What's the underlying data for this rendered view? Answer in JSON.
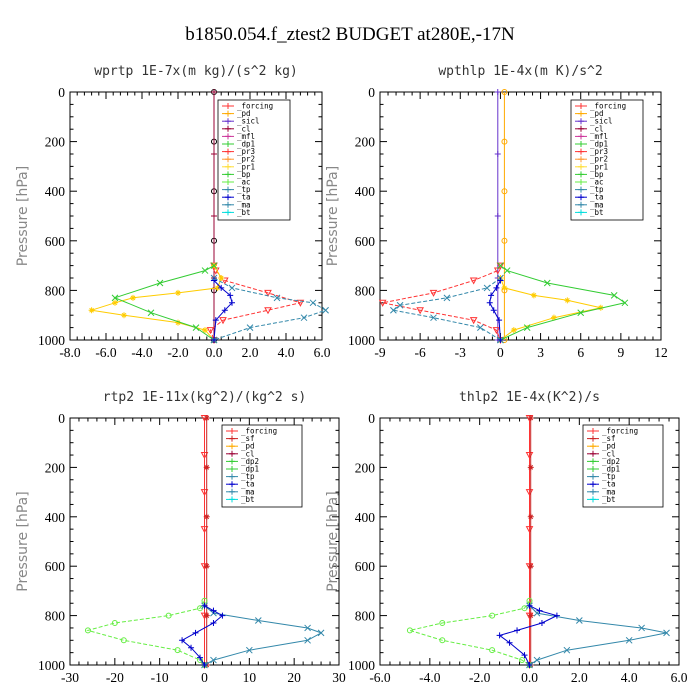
{
  "figure_title": "b1850.054.f_ztest2  BUDGET at280E,-17N",
  "chart_data": [
    {
      "type": "line",
      "title": "wprtp  1E-7x(m kg)/(s^2 kg)",
      "ylabel": "Pressure [hPa]",
      "xlim": [
        -8,
        6
      ],
      "ylim": [
        1000,
        0
      ],
      "xticks": [
        -8,
        -6,
        -4,
        -2,
        0,
        2,
        4,
        6
      ],
      "xtick_labels": [
        "-8.0",
        "-6.0",
        "-4.0",
        "-2.0",
        "0.0",
        "2.0",
        "4.0",
        "6.0"
      ],
      "yticks": [
        0,
        200,
        400,
        600,
        800,
        1000
      ],
      "ytick_labels": [
        "0",
        "200",
        "400",
        "600",
        "800",
        "1000"
      ],
      "legend": [
        "_forcing",
        "_pd",
        "_sicl",
        "_cl",
        "_mfl",
        "_dp1",
        "_pr3",
        "_pr2",
        "_pr1",
        "_bp",
        "_ac",
        "_tp",
        "_ta",
        "_ma",
        "_bt"
      ],
      "series": [
        {
          "color": "#000000",
          "marker": "circle",
          "x": [
            0,
            0,
            0,
            0,
            0,
            0
          ],
          "y": [
            0,
            200,
            400,
            600,
            800,
            1000
          ]
        },
        {
          "color": "#990033",
          "marker": "plus",
          "x": [
            0,
            0,
            0,
            0,
            0
          ],
          "y": [
            0,
            250,
            500,
            750,
            1000
          ]
        },
        {
          "color": "#ff3333",
          "marker": "triangle-down",
          "x": [
            0,
            0.1,
            0.6,
            3.0,
            4.8,
            3.0,
            0.5,
            -0.2,
            0
          ],
          "y": [
            700,
            720,
            760,
            810,
            850,
            880,
            920,
            960,
            1000
          ]
        },
        {
          "color": "#ffcc00",
          "marker": "star",
          "x": [
            0,
            0.4,
            0.2,
            -2.0,
            -4.5,
            -5.5,
            -6.8,
            -5.0,
            -2.0,
            -0.5,
            0
          ],
          "y": [
            700,
            750,
            790,
            810,
            830,
            850,
            880,
            900,
            930,
            960,
            1000
          ]
        },
        {
          "color": "#33cc33",
          "marker": "x",
          "x": [
            0,
            -0.5,
            -3.0,
            -5.5,
            -3.5,
            -1.0,
            0
          ],
          "y": [
            700,
            720,
            770,
            830,
            890,
            950,
            1000
          ]
        },
        {
          "color": "#3388aa",
          "marker": "x",
          "x": [
            0,
            1.0,
            3.5,
            5.5,
            6.2,
            5.0,
            2.0,
            0
          ],
          "y": [
            750,
            790,
            830,
            850,
            880,
            910,
            950,
            1000
          ]
        },
        {
          "color": "#0000cc",
          "marker": "plus",
          "x": [
            0,
            0.4,
            0.9,
            1.0,
            0.6,
            0.1,
            0
          ],
          "y": [
            760,
            790,
            820,
            850,
            880,
            920,
            1000
          ]
        }
      ]
    },
    {
      "type": "line",
      "title": "wpthlp  1E-4x(m K)/s^2",
      "ylabel": "Pressure [hPa]",
      "xlim": [
        -9,
        12
      ],
      "ylim": [
        1000,
        0
      ],
      "xticks": [
        -9,
        -6,
        -3,
        0,
        3,
        6,
        9,
        12
      ],
      "xtick_labels": [
        "-9",
        "-6",
        "-3",
        "0",
        "3",
        "6",
        "9",
        "12"
      ],
      "yticks": [
        0,
        200,
        400,
        600,
        800,
        1000
      ],
      "ytick_labels": [
        "0",
        "200",
        "400",
        "600",
        "800",
        "1000"
      ],
      "legend": [
        "_forcing",
        "_pd",
        "_sicl",
        "_cl",
        "_mfl",
        "_dp1",
        "_pr3",
        "_pr2",
        "_pr1",
        "_bp",
        "_ac",
        "_tp",
        "_ta",
        "_ma",
        "_bt"
      ],
      "series": [
        {
          "color": "#ffaa00",
          "marker": "circle",
          "x": [
            0.3,
            0.3,
            0.3,
            0.3,
            0.3,
            0.3
          ],
          "y": [
            0,
            200,
            400,
            600,
            800,
            1000
          ]
        },
        {
          "color": "#6633cc",
          "marker": "plus",
          "x": [
            -0.2,
            -0.2,
            -0.2,
            -0.2,
            -0.2
          ],
          "y": [
            0,
            250,
            500,
            750,
            1000
          ]
        },
        {
          "color": "#ff3333",
          "marker": "triangle-down",
          "x": [
            0,
            -0.2,
            -2.0,
            -5.0,
            -8.8,
            -6.0,
            -2.0,
            -0.3,
            0
          ],
          "y": [
            700,
            720,
            760,
            810,
            850,
            880,
            920,
            960,
            1000
          ]
        },
        {
          "color": "#ffcc00",
          "marker": "star",
          "x": [
            0,
            0.3,
            2.5,
            5.0,
            7.5,
            4.0,
            1.0,
            0
          ],
          "y": [
            750,
            790,
            820,
            840,
            870,
            910,
            960,
            1000
          ]
        },
        {
          "color": "#33cc33",
          "marker": "x",
          "x": [
            0,
            0.5,
            3.5,
            8.5,
            9.3,
            6.0,
            2.0,
            0
          ],
          "y": [
            700,
            720,
            770,
            820,
            850,
            890,
            950,
            1000
          ]
        },
        {
          "color": "#3388aa",
          "marker": "x",
          "x": [
            0,
            -1.0,
            -4.0,
            -7.5,
            -8.0,
            -5.0,
            -1.5,
            0
          ],
          "y": [
            750,
            790,
            830,
            860,
            880,
            910,
            950,
            1000
          ]
        },
        {
          "color": "#0000cc",
          "marker": "plus",
          "x": [
            0,
            -0.3,
            -0.7,
            -0.8,
            -0.5,
            -0.1,
            0
          ],
          "y": [
            760,
            790,
            820,
            850,
            880,
            920,
            1000
          ]
        }
      ]
    },
    {
      "type": "line",
      "title": "rtp2  1E-11x(kg^2)/(kg^2 s)",
      "ylabel": "Pressure [hPa]",
      "xlim": [
        -30,
        30
      ],
      "ylim": [
        1000,
        0
      ],
      "xticks": [
        -30,
        -20,
        -10,
        0,
        10,
        20,
        30
      ],
      "xtick_labels": [
        "-30",
        "-20",
        "-10",
        "0",
        "10",
        "20",
        "30"
      ],
      "yticks": [
        0,
        200,
        400,
        600,
        800,
        1000
      ],
      "ytick_labels": [
        "0",
        "200",
        "400",
        "600",
        "800",
        "1000"
      ],
      "legend": [
        "_forcing",
        "_sf",
        "_pd",
        "_cl",
        "_dp2",
        "_dp1",
        "_tp",
        "_ta",
        "_ma",
        "_bt"
      ],
      "series": [
        {
          "color": "#ff3333",
          "marker": "triangle-down",
          "x": [
            0,
            0,
            0,
            0,
            0,
            0,
            0
          ],
          "y": [
            0,
            150,
            300,
            450,
            600,
            800,
            1000
          ]
        },
        {
          "color": "#cc2222",
          "marker": "star",
          "x": [
            0.5,
            0.5,
            0.5,
            0.5,
            0.5,
            0.5
          ],
          "y": [
            0,
            200,
            400,
            600,
            800,
            1000
          ]
        },
        {
          "color": "#66ee44",
          "marker": "circle",
          "x": [
            0,
            -1.0,
            -8.0,
            -20.0,
            -26.0,
            -18.0,
            -6.0,
            -1.0,
            0
          ],
          "y": [
            740,
            770,
            800,
            830,
            860,
            900,
            940,
            980,
            1000
          ]
        },
        {
          "color": "#3388aa",
          "marker": "x",
          "x": [
            0,
            2.0,
            12.0,
            23.0,
            26.0,
            23.0,
            10.0,
            2.0,
            0
          ],
          "y": [
            760,
            790,
            820,
            850,
            870,
            900,
            940,
            980,
            1000
          ]
        },
        {
          "color": "#0000cc",
          "marker": "plus",
          "x": [
            0,
            2.0,
            4.0,
            2.0,
            -2.0,
            -5.0,
            -3.0,
            -1.0,
            0
          ],
          "y": [
            760,
            780,
            800,
            830,
            870,
            900,
            930,
            970,
            1000
          ]
        }
      ]
    },
    {
      "type": "line",
      "title": "thlp2  1E-4x(K^2)/s",
      "ylabel": "Pressure [hPa]",
      "xlim": [
        -6,
        6
      ],
      "ylim": [
        1000,
        0
      ],
      "xticks": [
        -6,
        -4,
        -2,
        0,
        2,
        4,
        6
      ],
      "xtick_labels": [
        "-6.0",
        "-4.0",
        "-2.0",
        "0.0",
        "2.0",
        "4.0",
        "6.0"
      ],
      "yticks": [
        0,
        200,
        400,
        600,
        800,
        1000
      ],
      "ytick_labels": [
        "0",
        "200",
        "400",
        "600",
        "800",
        "1000"
      ],
      "legend": [
        "_forcing",
        "_sf",
        "_pd",
        "_cl",
        "_dp2",
        "_dp1",
        "_tp",
        "_ta",
        "_ma",
        "_bt"
      ],
      "series": [
        {
          "color": "#ff3333",
          "marker": "triangle-down",
          "x": [
            0,
            0,
            0,
            0,
            0,
            0,
            0
          ],
          "y": [
            0,
            150,
            300,
            450,
            600,
            800,
            1000
          ]
        },
        {
          "color": "#cc2222",
          "marker": "star",
          "x": [
            0.05,
            0.05,
            0.05,
            0.05,
            0.05,
            0.05
          ],
          "y": [
            0,
            200,
            400,
            600,
            800,
            1000
          ]
        },
        {
          "color": "#66ee44",
          "marker": "circle",
          "x": [
            0,
            -0.2,
            -1.5,
            -3.5,
            -4.8,
            -3.5,
            -1.5,
            -0.3,
            0
          ],
          "y": [
            740,
            770,
            800,
            830,
            860,
            900,
            940,
            980,
            1000
          ]
        },
        {
          "color": "#3388aa",
          "marker": "x",
          "x": [
            0,
            0.3,
            2.0,
            4.5,
            5.5,
            4.0,
            1.5,
            0.3,
            0
          ],
          "y": [
            760,
            790,
            820,
            850,
            870,
            900,
            940,
            980,
            1000
          ]
        },
        {
          "color": "#0000cc",
          "marker": "plus",
          "x": [
            0,
            0.4,
            1.1,
            0.5,
            -0.5,
            -1.2,
            -0.8,
            -0.2,
            0
          ],
          "y": [
            760,
            780,
            800,
            830,
            860,
            880,
            910,
            960,
            1000
          ]
        }
      ]
    }
  ],
  "legend_colors": {
    "_forcing": "#ff3333",
    "_pd": "#ffaa00",
    "_sicl": "#6633cc",
    "_cl": "#990033",
    "_mfl": "#cc3399",
    "_dp1": "#33cc33",
    "_pr3": "#ff3333",
    "_pr2": "#ff9933",
    "_pr1": "#ffdd33",
    "_bp": "#33cc33",
    "_ac": "#66ee44",
    "_tp": "#3388aa",
    "_ta": "#0000cc",
    "_ma": "#3388aa",
    "_bt": "#00dddd",
    "_sf": "#cc2222",
    "_dp2": "#33cc33"
  }
}
